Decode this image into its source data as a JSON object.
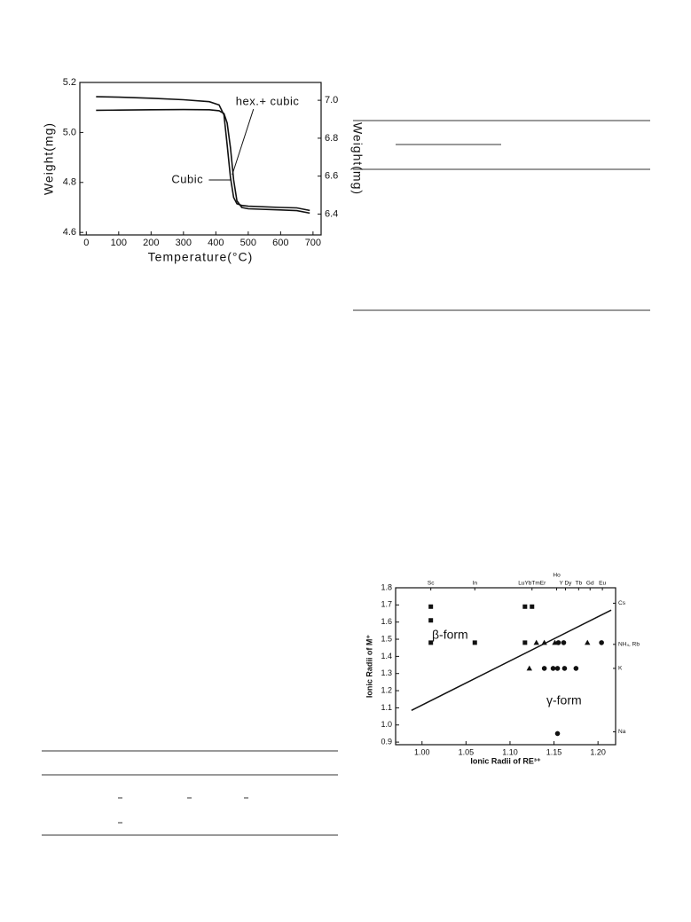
{
  "chart_data": [
    {
      "type": "line",
      "x_label": "Temperature(°C)",
      "y_label": "Weight(mg)",
      "y2_label": "Weight(mg)",
      "x": [
        30,
        100,
        200,
        300,
        380,
        410,
        425,
        435,
        445,
        455,
        465,
        480,
        500,
        600,
        650,
        690
      ],
      "series": [
        {
          "name": "hex.+ cubic",
          "color": "#111111",
          "axis": "y",
          "values": [
            5.143,
            5.141,
            5.137,
            5.131,
            5.123,
            5.11,
            5.07,
            4.95,
            4.82,
            4.74,
            4.715,
            4.708,
            4.705,
            4.7,
            4.698,
            4.688
          ]
        },
        {
          "name": "Cubic",
          "color": "#111111",
          "axis": "y2",
          "values": [
            6.947,
            6.948,
            6.95,
            6.951,
            6.95,
            6.945,
            6.93,
            6.88,
            6.75,
            6.58,
            6.47,
            6.435,
            6.428,
            6.422,
            6.418,
            6.405
          ]
        }
      ],
      "xlim": [
        -20,
        725
      ],
      "xticks": [
        0,
        100,
        200,
        300,
        400,
        500,
        600,
        700
      ],
      "ylim": [
        4.59,
        5.2
      ],
      "yticks": [
        4.6,
        4.8,
        {
          "value": 5.0,
          "label": "5.0"
        },
        5.2
      ],
      "y2lim": [
        6.29,
        7.094
      ],
      "y2ticks": [
        6.4,
        6.6,
        6.8,
        {
          "value": 7.0,
          "label": "7.0"
        }
      ]
    },
    {
      "type": "scatter",
      "x_label": "Ionic Radii of RE³⁺",
      "y_label": "Ionic Radii of M⁺",
      "annotations": [
        "β-form",
        "γ-form"
      ],
      "series": [
        {
          "marker": "square",
          "color": "#111111",
          "x": [
            1.01,
            1.01,
            1.01,
            1.06,
            1.117,
            1.125,
            1.117
          ],
          "values": [
            1.69,
            1.61,
            1.48,
            1.48,
            1.69,
            1.69,
            1.48
          ]
        },
        {
          "marker": "triangle",
          "color": "#111111",
          "x": [
            1.122,
            1.13,
            1.139,
            1.151,
            1.188
          ],
          "values": [
            1.33,
            1.48,
            1.48,
            1.48,
            1.48
          ]
        },
        {
          "marker": "circle",
          "color": "#111111",
          "x": [
            1.139,
            1.149,
            1.154,
            1.162,
            1.175,
            1.155,
            1.161,
            1.204,
            1.154
          ],
          "values": [
            1.33,
            1.33,
            1.33,
            1.33,
            1.33,
            1.48,
            1.48,
            1.48,
            0.95
          ]
        }
      ],
      "fit_line": {
        "x": [
          0.988,
          1.215
        ],
        "values": [
          1.085,
          1.67
        ]
      },
      "top_labels": [
        {
          "value": 1.01,
          "label": "Sc"
        },
        {
          "value": 1.06,
          "label": "In"
        },
        {
          "value": 1.125,
          "label": "LuYbTmEr"
        },
        {
          "value": 1.153,
          "label": "Ho"
        },
        {
          "value": 1.163,
          "label": "Y Dy"
        },
        {
          "value": 1.178,
          "label": "Tb"
        },
        {
          "value": 1.191,
          "label": "Gd"
        },
        {
          "value": 1.205,
          "label": "Eu"
        }
      ],
      "right_labels": [
        {
          "value": 1.71,
          "label": "Cs"
        },
        {
          "value": 1.47,
          "label": "NH₄, Rb"
        },
        {
          "value": 1.33,
          "label": "K"
        },
        {
          "value": 0.96,
          "label": "Na"
        }
      ],
      "xlim": [
        0.97,
        1.22
      ],
      "xticks": [
        {
          "value": 1.0,
          "label": "1.00"
        },
        {
          "value": 1.05,
          "label": "1.05"
        },
        {
          "value": 1.1,
          "label": "1.10"
        },
        {
          "value": 1.15,
          "label": "1.15"
        },
        {
          "value": 1.2,
          "label": "1.20"
        }
      ],
      "ylim": [
        0.885,
        1.8
      ],
      "yticks": [
        {
          "value": 0.9,
          "label": "0.9"
        },
        {
          "value": 1.0,
          "label": "1.0"
        },
        1.1,
        1.2,
        1.3,
        1.4,
        1.5,
        1.6,
        1.7,
        1.8
      ]
    }
  ]
}
